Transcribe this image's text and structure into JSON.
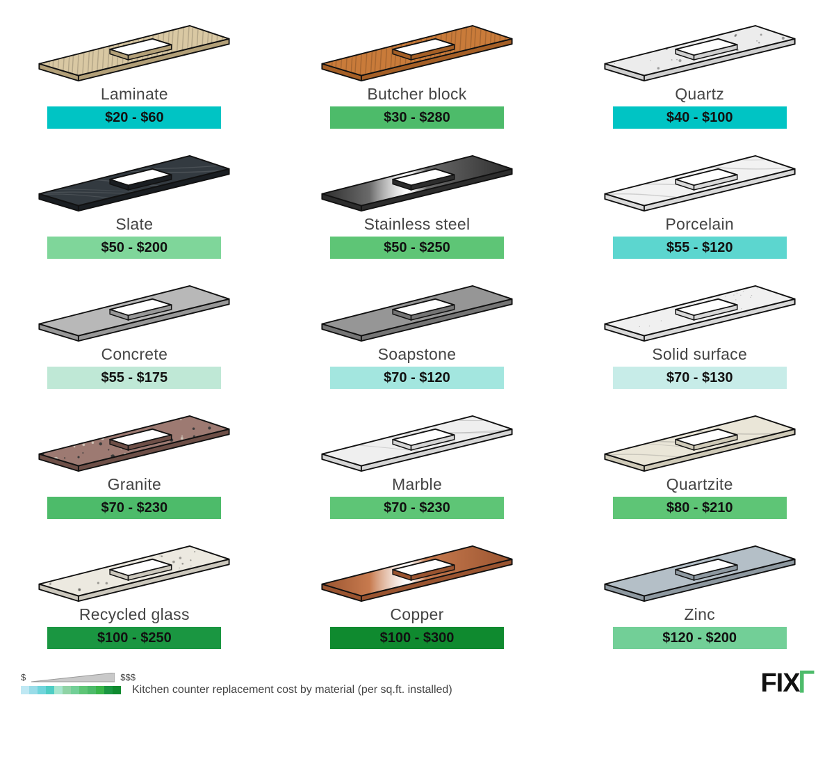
{
  "caption": "Kitchen counter replacement cost by material (per sq.ft. installed)",
  "brand": "FIX",
  "legend_low": "$",
  "legend_high": "$$$",
  "legend_colors": [
    "#bfe8f3",
    "#99dce8",
    "#70d5dc",
    "#4ecdc4",
    "#a8e6cf",
    "#8fd3a5",
    "#72cf97",
    "#5ec576",
    "#4dbb6a",
    "#39b54a",
    "#1a9641",
    "#0f8a2f"
  ],
  "items": [
    {
      "label": "Laminate",
      "price": "$20 - $60",
      "price_bg": "#00c4c4",
      "top_fill": "#d9c8a3",
      "side_fill": "#b3a078",
      "pattern": "wood"
    },
    {
      "label": "Butcher block",
      "price": "$30 - $280",
      "price_bg": "#4dbb6a",
      "top_fill": "#c97b3a",
      "side_fill": "#a55f26",
      "pattern": "wood"
    },
    {
      "label": "Quartz",
      "price": "$40 - $100",
      "price_bg": "#00c4c4",
      "top_fill": "#ececec",
      "side_fill": "#cfcfcf",
      "pattern": "speckle"
    },
    {
      "label": "Slate",
      "price": "$50 - $200",
      "price_bg": "#7fd69a",
      "top_fill": "#333a40",
      "side_fill": "#1a1e22",
      "pattern": "veins"
    },
    {
      "label": "Stainless steel",
      "price": "$50 - $250",
      "price_bg": "#5ec576",
      "top_fill": "#6a6a6a",
      "side_fill": "#2d2d2d",
      "pattern": "brushed"
    },
    {
      "label": "Porcelain",
      "price": "$55 - $120",
      "price_bg": "#5cd6cf",
      "top_fill": "#f2f2f2",
      "side_fill": "#d9d9d9",
      "pattern": "marble"
    },
    {
      "label": "Concrete",
      "price": "$55 - $175",
      "price_bg": "#bfe8d6",
      "top_fill": "#b8b8b8",
      "side_fill": "#989898",
      "pattern": "plain"
    },
    {
      "label": "Soapstone",
      "price": "$70 - $120",
      "price_bg": "#a3e6df",
      "top_fill": "#969696",
      "side_fill": "#757575",
      "pattern": "plain"
    },
    {
      "label": "Solid surface",
      "price": "$70 - $130",
      "price_bg": "#c7ece8",
      "top_fill": "#f0f0f0",
      "side_fill": "#d8d8d8",
      "pattern": "fine"
    },
    {
      "label": "Granite",
      "price": "$70 - $230",
      "price_bg": "#4dbb6a",
      "top_fill": "#9d7a72",
      "side_fill": "#6e4f47",
      "pattern": "granite"
    },
    {
      "label": "Marble",
      "price": "$70 - $230",
      "price_bg": "#5ec576",
      "top_fill": "#efefef",
      "side_fill": "#d5d5d5",
      "pattern": "marble"
    },
    {
      "label": "Quartzite",
      "price": "$80 - $210",
      "price_bg": "#5ec576",
      "top_fill": "#eae6d8",
      "side_fill": "#cfcab8",
      "pattern": "marble"
    },
    {
      "label": "Recycled glass",
      "price": "$100 - $250",
      "price_bg": "#1a9641",
      "top_fill": "#ece9e0",
      "side_fill": "#ccc8bd",
      "pattern": "speckle"
    },
    {
      "label": "Copper",
      "price": "$100 - $300",
      "price_bg": "#0f8a2f",
      "top_fill": "#c77a4e",
      "side_fill": "#9a5430",
      "pattern": "brushed"
    },
    {
      "label": "Zinc",
      "price": "$120 - $200",
      "price_bg": "#72cf97",
      "top_fill": "#b4bfc7",
      "side_fill": "#8e99a1",
      "pattern": "plain"
    }
  ]
}
